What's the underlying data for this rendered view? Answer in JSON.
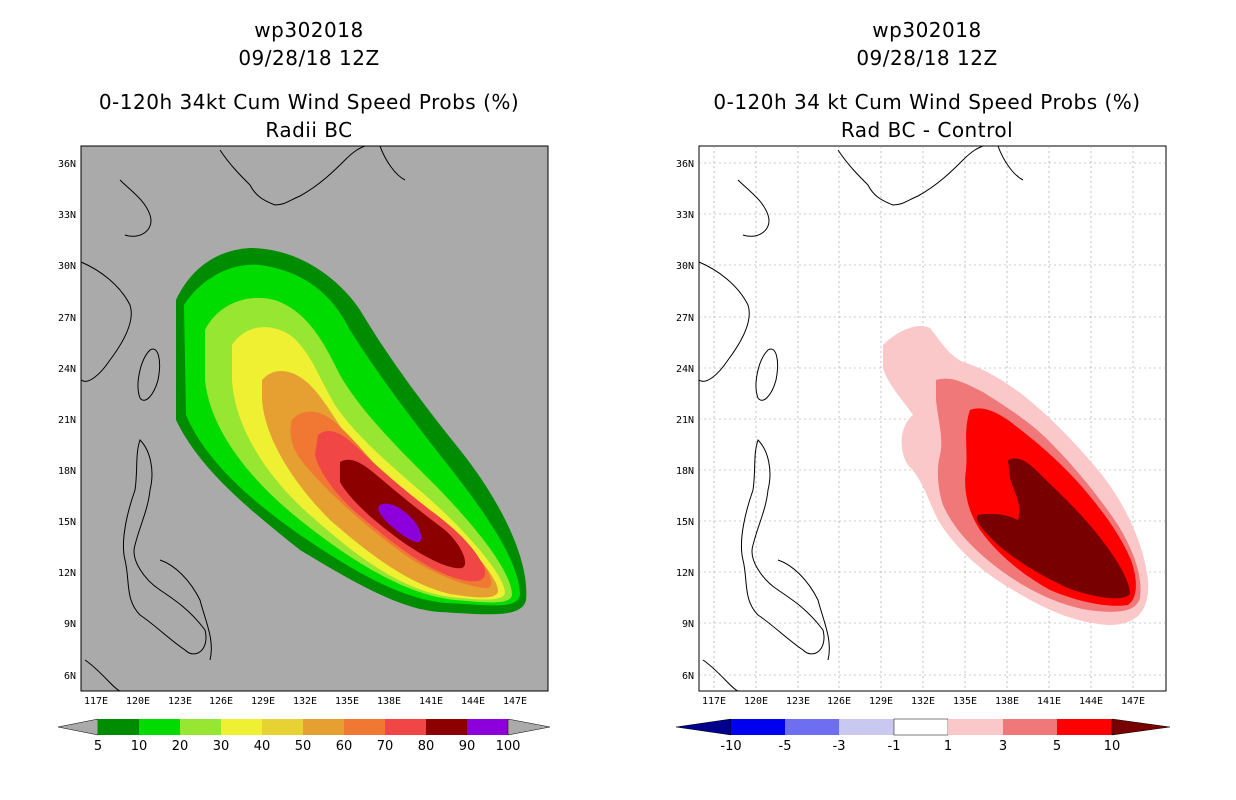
{
  "left": {
    "title_line1": "wp302018",
    "title_line2": "09/28/18 12Z",
    "title_line3": "0-120h 34kt Cum Wind Speed Probs (%)",
    "title_line4": "Radii BC",
    "lat_labels": [
      "36N",
      "33N",
      "30N",
      "27N",
      "24N",
      "21N",
      "18N",
      "15N",
      "12N",
      "9N",
      "6N"
    ],
    "lon_labels": [
      "117E",
      "120E",
      "123E",
      "126E",
      "129E",
      "132E",
      "135E",
      "138E",
      "141E",
      "144E",
      "147E"
    ],
    "colorbar_labels": [
      "5",
      "10",
      "20",
      "30",
      "40",
      "50",
      "60",
      "70",
      "80",
      "90",
      "100"
    ],
    "colorbar_colors": [
      "#008c00",
      "#00c800",
      "#00dc00",
      "#96e632",
      "#f0f032",
      "#e6c832",
      "#e6a032",
      "#f07832",
      "#f04646",
      "#8c0000",
      "#8c00dc",
      "#aaaaaa"
    ]
  },
  "right": {
    "title_line1": "wp302018",
    "title_line2": "09/28/18 12Z",
    "title_line3": "0-120h 34 kt Cum Wind Speed Probs (%)",
    "title_line4": "Rad BC - Control",
    "lat_labels": [
      "36N",
      "33N",
      "30N",
      "27N",
      "24N",
      "21N",
      "18N",
      "15N",
      "12N",
      "9N",
      "6N"
    ],
    "lon_labels": [
      "117E",
      "120E",
      "123E",
      "126E",
      "129E",
      "132E",
      "135E",
      "138E",
      "141E",
      "144E",
      "147E"
    ],
    "colorbar_labels": [
      "-10",
      "-5",
      "-3",
      "-1",
      "1",
      "3",
      "5",
      "10"
    ],
    "colorbar_colors": [
      "#00008c",
      "#0000f0",
      "#6e6ef0",
      "#c8c8f0",
      "#ffffff",
      "#fac8c8",
      "#f07878",
      "#ff0000",
      "#780000"
    ]
  }
}
